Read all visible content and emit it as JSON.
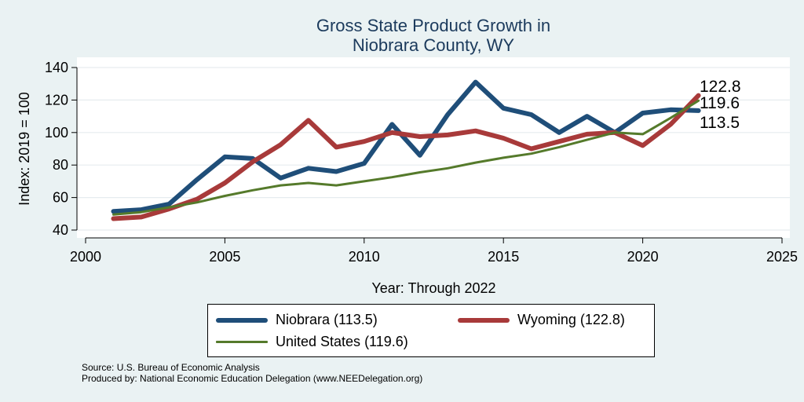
{
  "chart_data": {
    "type": "line",
    "title_line1": "Gross State Product Growth in",
    "title_line2": "Niobrara County, WY",
    "xlabel": "Year: Through 2022",
    "ylabel": "Index: 2019 = 100",
    "xlim": [
      2000,
      2025
    ],
    "ylim": [
      40,
      140
    ],
    "xticks": [
      2000,
      2005,
      2010,
      2015,
      2020,
      2025
    ],
    "yticks": [
      40,
      60,
      80,
      100,
      120,
      140
    ],
    "x": [
      2001,
      2002,
      2003,
      2004,
      2005,
      2006,
      2007,
      2008,
      2009,
      2010,
      2011,
      2012,
      2013,
      2014,
      2015,
      2016,
      2017,
      2018,
      2019,
      2020,
      2021,
      2022
    ],
    "series": [
      {
        "name": "Niobrara",
        "legend": "Niobrara  (113.5)",
        "color": "#1f4e79",
        "end_label": "113.5",
        "values": [
          51.5,
          52.5,
          56,
          71,
          85,
          84,
          72,
          78,
          76,
          81,
          105,
          86,
          111,
          131,
          115,
          111,
          100,
          110,
          100,
          112,
          114,
          113.5
        ]
      },
      {
        "name": "Wyoming",
        "legend": "Wyoming (122.8)",
        "color": "#a83a3a",
        "end_label": "122.8",
        "values": [
          47,
          48,
          53,
          59,
          69,
          82,
          92.5,
          107.5,
          91,
          94.5,
          100,
          97.5,
          98.5,
          101,
          96.5,
          90,
          94.5,
          99,
          100,
          92,
          105,
          122.8
        ]
      },
      {
        "name": "United States",
        "legend": "United States (119.6)",
        "color": "#557a2b",
        "end_label": "119.6",
        "values": [
          49.5,
          51,
          54,
          57,
          61,
          64.5,
          67.5,
          69,
          67.5,
          70,
          72.5,
          75.5,
          78,
          81.5,
          84.5,
          87,
          91,
          95.5,
          100,
          99,
          109,
          119.6
        ]
      }
    ]
  },
  "source": {
    "line1": "Source: U.S. Bureau of Economic Analysis",
    "line2": "Produced by: National Economic Education Delegation (www.NEEDelegation.org)"
  }
}
